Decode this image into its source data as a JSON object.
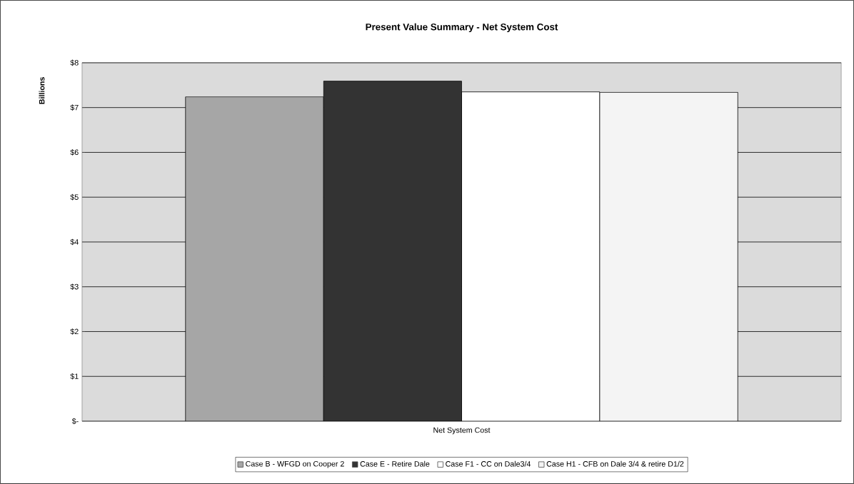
{
  "chart_data": {
    "type": "bar",
    "title": "Present Value Summary - Net System Cost",
    "ylabel": "Billions",
    "categories": [
      "Net System Cost"
    ],
    "series": [
      {
        "name": "Case B - WFGD on Cooper 2",
        "color": "#a6a6a6",
        "values": [
          7.24
        ]
      },
      {
        "name": "Case E - Retire Dale",
        "color": "#333333",
        "values": [
          7.59
        ]
      },
      {
        "name": "Case F1 - CC on Dale3/4",
        "color": "#ffffff",
        "values": [
          7.35
        ]
      },
      {
        "name": "Case H1 - CFB on Dale 3/4 & retire D1/2",
        "color": "#f4f4f4",
        "values": [
          7.34
        ]
      }
    ],
    "ylim": [
      0,
      8
    ],
    "yticks": [
      {
        "value": 0,
        "label": "$-"
      },
      {
        "value": 1,
        "label": "$1"
      },
      {
        "value": 2,
        "label": "$2"
      },
      {
        "value": 3,
        "label": "$3"
      },
      {
        "value": 4,
        "label": "$4"
      },
      {
        "value": 5,
        "label": "$5"
      },
      {
        "value": 6,
        "label": "$6"
      },
      {
        "value": 7,
        "label": "$7"
      },
      {
        "value": 8,
        "label": "$8"
      }
    ],
    "grid": "y",
    "legend": "bottom"
  }
}
